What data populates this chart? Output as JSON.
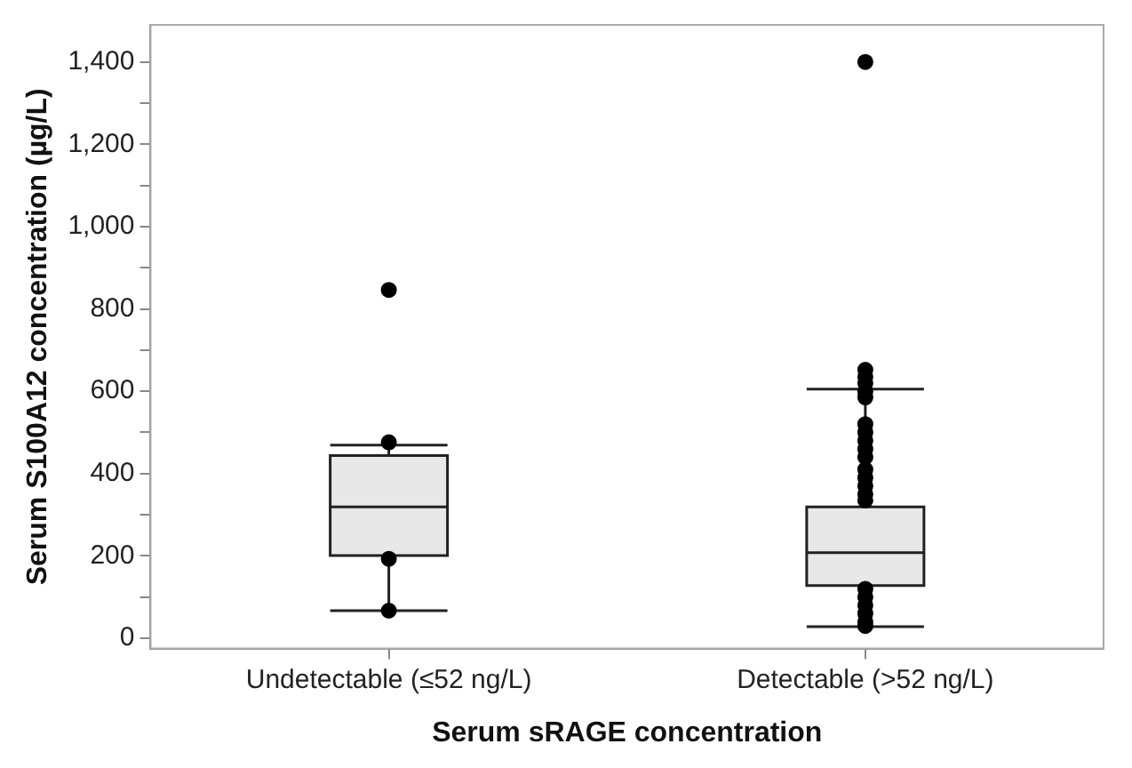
{
  "chart_data": {
    "type": "box",
    "xlabel": "Serum sRAGE concentration",
    "ylabel": "Serum S100A12 concentration (µg/L)",
    "categories": [
      "Undetectable (≤52 ng/L)",
      "Detectable (>52 ng/L)"
    ],
    "boxes": [
      {
        "low": 67,
        "q1": 201,
        "median": 319,
        "q3": 444,
        "high": 469,
        "outliers": [
          846,
          476,
          193,
          67
        ]
      },
      {
        "low": 28,
        "q1": 128,
        "median": 208,
        "q3": 319,
        "high": 605,
        "outliers": [
          1400,
          652,
          635,
          620,
          600,
          585,
          520,
          500,
          480,
          460,
          440,
          410,
          390,
          370,
          350,
          335,
          120,
          100,
          80,
          60,
          40,
          30
        ]
      }
    ],
    "color": "#e8e8e8",
    "ylim": [
      -25,
      1490
    ],
    "yticks": [
      0,
      {
        "value": 100,
        "label": null
      },
      {
        "value": 200,
        "label": "200"
      },
      {
        "value": 300,
        "label": null
      },
      {
        "value": 400,
        "label": "400"
      },
      {
        "value": 500,
        "label": null
      },
      {
        "value": 600,
        "label": "600"
      },
      {
        "value": 700,
        "label": null
      },
      {
        "value": 800,
        "label": "800"
      },
      {
        "value": 900,
        "label": null
      },
      {
        "value": 1000,
        "label": "1,000"
      },
      {
        "value": 1100,
        "label": null
      },
      {
        "value": 1200,
        "label": "1,200"
      },
      {
        "value": 1300,
        "label": null
      },
      {
        "value": 1400,
        "label": "1,400"
      }
    ],
    "grid": false,
    "legend": false,
    "marker": "circle"
  }
}
